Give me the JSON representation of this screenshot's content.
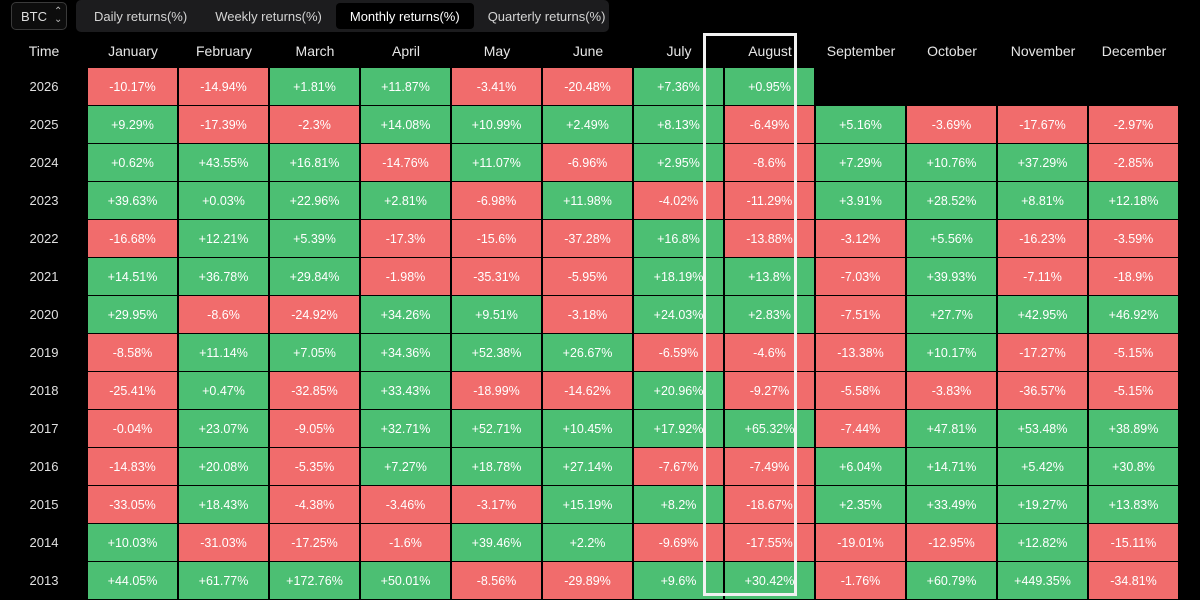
{
  "asset": "BTC",
  "tabs": [
    {
      "label": "Daily returns(%)",
      "active": false
    },
    {
      "label": "Weekly returns(%)",
      "active": false
    },
    {
      "label": "Monthly returns(%)",
      "active": true
    },
    {
      "label": "Quarterly returns(%)",
      "active": false
    }
  ],
  "table": {
    "year_header": "Time",
    "months": [
      "January",
      "February",
      "March",
      "April",
      "May",
      "June",
      "July",
      "August",
      "September",
      "October",
      "November",
      "December"
    ],
    "highlighted_month": "August",
    "rows": [
      {
        "year": "2026",
        "values": [
          "-10.17%",
          "-14.94%",
          "+1.81%",
          "+11.87%",
          "-3.41%",
          "-20.48%",
          "+7.36%",
          "+0.95%",
          "",
          "",
          "",
          ""
        ]
      },
      {
        "year": "2025",
        "values": [
          "+9.29%",
          "-17.39%",
          "-2.3%",
          "+14.08%",
          "+10.99%",
          "+2.49%",
          "+8.13%",
          "-6.49%",
          "+5.16%",
          "-3.69%",
          "-17.67%",
          "-2.97%"
        ]
      },
      {
        "year": "2024",
        "values": [
          "+0.62%",
          "+43.55%",
          "+16.81%",
          "-14.76%",
          "+11.07%",
          "-6.96%",
          "+2.95%",
          "-8.6%",
          "+7.29%",
          "+10.76%",
          "+37.29%",
          "-2.85%"
        ]
      },
      {
        "year": "2023",
        "values": [
          "+39.63%",
          "+0.03%",
          "+22.96%",
          "+2.81%",
          "-6.98%",
          "+11.98%",
          "-4.02%",
          "-11.29%",
          "+3.91%",
          "+28.52%",
          "+8.81%",
          "+12.18%"
        ]
      },
      {
        "year": "2022",
        "values": [
          "-16.68%",
          "+12.21%",
          "+5.39%",
          "-17.3%",
          "-15.6%",
          "-37.28%",
          "+16.8%",
          "-13.88%",
          "-3.12%",
          "+5.56%",
          "-16.23%",
          "-3.59%"
        ]
      },
      {
        "year": "2021",
        "values": [
          "+14.51%",
          "+36.78%",
          "+29.84%",
          "-1.98%",
          "-35.31%",
          "-5.95%",
          "+18.19%",
          "+13.8%",
          "-7.03%",
          "+39.93%",
          "-7.11%",
          "-18.9%"
        ]
      },
      {
        "year": "2020",
        "values": [
          "+29.95%",
          "-8.6%",
          "-24.92%",
          "+34.26%",
          "+9.51%",
          "-3.18%",
          "+24.03%",
          "+2.83%",
          "-7.51%",
          "+27.7%",
          "+42.95%",
          "+46.92%"
        ]
      },
      {
        "year": "2019",
        "values": [
          "-8.58%",
          "+11.14%",
          "+7.05%",
          "+34.36%",
          "+52.38%",
          "+26.67%",
          "-6.59%",
          "-4.6%",
          "-13.38%",
          "+10.17%",
          "-17.27%",
          "-5.15%"
        ]
      },
      {
        "year": "2018",
        "values": [
          "-25.41%",
          "+0.47%",
          "-32.85%",
          "+33.43%",
          "-18.99%",
          "-14.62%",
          "+20.96%",
          "-9.27%",
          "-5.58%",
          "-3.83%",
          "-36.57%",
          "-5.15%"
        ]
      },
      {
        "year": "2017",
        "values": [
          "-0.04%",
          "+23.07%",
          "-9.05%",
          "+32.71%",
          "+52.71%",
          "+10.45%",
          "+17.92%",
          "+65.32%",
          "-7.44%",
          "+47.81%",
          "+53.48%",
          "+38.89%"
        ]
      },
      {
        "year": "2016",
        "values": [
          "-14.83%",
          "+20.08%",
          "-5.35%",
          "+7.27%",
          "+18.78%",
          "+27.14%",
          "-7.67%",
          "-7.49%",
          "+6.04%",
          "+14.71%",
          "+5.42%",
          "+30.8%"
        ]
      },
      {
        "year": "2015",
        "values": [
          "-33.05%",
          "+18.43%",
          "-4.38%",
          "-3.46%",
          "-3.17%",
          "+15.19%",
          "+8.2%",
          "-18.67%",
          "+2.35%",
          "+33.49%",
          "+19.27%",
          "+13.83%"
        ]
      },
      {
        "year": "2014",
        "values": [
          "+10.03%",
          "-31.03%",
          "-17.25%",
          "-1.6%",
          "+39.46%",
          "+2.2%",
          "-9.69%",
          "-17.55%",
          "-19.01%",
          "-12.95%",
          "+12.82%",
          "-15.11%"
        ]
      },
      {
        "year": "2013",
        "values": [
          "+44.05%",
          "+61.77%",
          "+172.76%",
          "+50.01%",
          "-8.56%",
          "-29.89%",
          "+9.6%",
          "+30.42%",
          "-1.76%",
          "+60.79%",
          "+449.35%",
          "-34.81%"
        ]
      }
    ]
  },
  "colors": {
    "positive": "#4cbf73",
    "negative": "#f16c6c",
    "background": "#000000",
    "highlight_border": "#f2f2f2"
  }
}
